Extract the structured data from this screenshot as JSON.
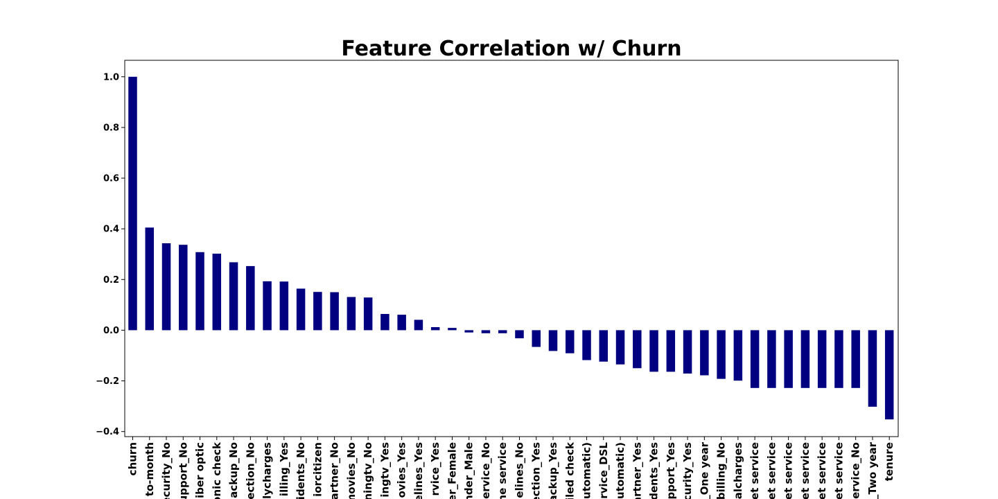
{
  "chart_data": {
    "type": "bar",
    "title": "Feature Correlation w/ Churn",
    "xlabel": "",
    "ylabel": "",
    "ylim": [
      -0.42,
      1.065
    ],
    "yticks": [
      -0.4,
      -0.2,
      0.0,
      0.2,
      0.4,
      0.6,
      0.8,
      1.0
    ],
    "ytick_labels": [
      "−0.4",
      "−0.2",
      "0.0",
      "0.2",
      "0.4",
      "0.6",
      "0.8",
      "1.0"
    ],
    "bar_color": "#000080",
    "grid": false,
    "categories": [
      "churn",
      "to-month",
      "ecurity_No",
      "upport_No",
      "iber optic",
      "onic check",
      "ackup_No",
      "ection_No",
      "lycharges",
      "illing_Yes",
      "idents_No",
      "iorcitizen",
      "artner_No",
      "movies_No",
      "ningtv_No",
      "ingtv_Yes",
      "ovies_Yes",
      "elines_Yes",
      "rvice_Yes",
      "er_Female",
      "nder_Male",
      "ervice_No",
      "ne service",
      "elines_No",
      "ection_Yes",
      "ackup_Yes",
      "iled check",
      "utomatic)",
      "rvice_DSL",
      "utomatic)",
      "artner_Yes",
      "dents_Yes",
      "pport_Yes",
      "curity_Yes",
      "_One year",
      "billing_No",
      "alcharges",
      "et service",
      "et service",
      "et service",
      "et service",
      "et service",
      "et service",
      "ervice_No",
      "_Two year",
      "tenure"
    ],
    "values": [
      1.0,
      0.405,
      0.343,
      0.337,
      0.308,
      0.302,
      0.268,
      0.253,
      0.193,
      0.192,
      0.164,
      0.151,
      0.15,
      0.131,
      0.129,
      0.064,
      0.061,
      0.041,
      0.012,
      0.009,
      -0.009,
      -0.012,
      -0.012,
      -0.032,
      -0.066,
      -0.082,
      -0.091,
      -0.118,
      -0.124,
      -0.135,
      -0.15,
      -0.164,
      -0.164,
      -0.171,
      -0.178,
      -0.192,
      -0.199,
      -0.228,
      -0.228,
      -0.228,
      -0.228,
      -0.228,
      -0.228,
      -0.228,
      -0.302,
      -0.352
    ]
  }
}
